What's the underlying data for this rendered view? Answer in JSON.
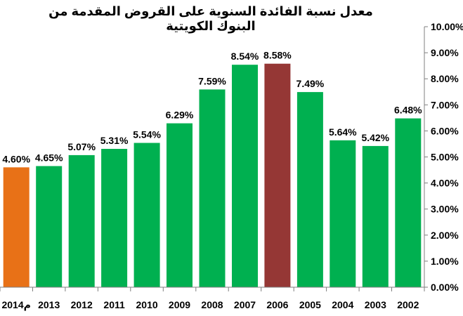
{
  "chart_data": {
    "type": "bar",
    "title": "معدل نسبة الفائدة السنوية على القروض المقدمة من البنوك الكويتية",
    "xlabel": "",
    "ylabel": "",
    "ylim": [
      0,
      10
    ],
    "yticks": [
      "0.00%",
      "1.00%",
      "2.00%",
      "3.00%",
      "4.00%",
      "5.00%",
      "6.00%",
      "7.00%",
      "8.00%",
      "9.00%",
      "10.00%"
    ],
    "y_axis_position": "right",
    "categories": [
      "2014م",
      "2013",
      "2012",
      "2011",
      "2010",
      "2009",
      "2008",
      "2007",
      "2006",
      "2005",
      "2004",
      "2003",
      "2002"
    ],
    "values": [
      4.6,
      4.65,
      5.07,
      5.31,
      5.54,
      6.29,
      7.59,
      8.54,
      8.58,
      7.49,
      5.64,
      5.42,
      6.48
    ],
    "data_labels": [
      "4.60%",
      "4.65%",
      "5.07%",
      "5.31%",
      "5.54%",
      "6.29%",
      "7.59%",
      "8.54%",
      "8.58%",
      "7.49%",
      "5.64%",
      "5.42%",
      "6.48%"
    ],
    "colors": [
      "#E87117",
      "#00B050",
      "#00B050",
      "#00B050",
      "#00B050",
      "#00B050",
      "#00B050",
      "#00B050",
      "#953735",
      "#00B050",
      "#00B050",
      "#00B050",
      "#00B050"
    ],
    "grid": false
  }
}
